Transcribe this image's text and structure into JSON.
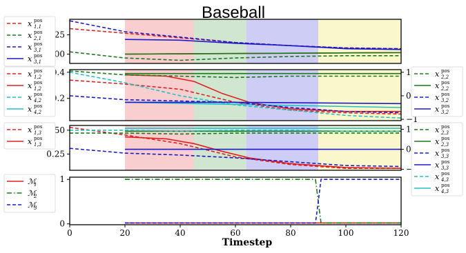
{
  "chart_data": {
    "title": "Baseball",
    "xlabel": "Timestep",
    "xlim": [
      0,
      120
    ],
    "xticks": [
      "0",
      "20",
      "40",
      "60",
      "80",
      "100",
      "120"
    ],
    "bands": [
      {
        "from": 20,
        "to": 45,
        "color": "#f7c6c6"
      },
      {
        "from": 45,
        "to": 64,
        "color": "#c8e2c8"
      },
      {
        "from": 64,
        "to": 90,
        "color": "#c4c4f4"
      },
      {
        "from": 90,
        "to": 120,
        "color": "#f9f6c4"
      }
    ],
    "panels": [
      {
        "type": "line",
        "ylim": [
          -0.12,
          0.45
        ],
        "yticks": [
          {
            "v": 0.25,
            "label": "0.25"
          },
          {
            "v": 0.0,
            "label": "0.00"
          }
        ],
        "legend_left": [
          {
            "label": "x",
            "sub": "1,1",
            "sup": "pos",
            "color": "#e02020",
            "dash": true
          },
          {
            "label": "x",
            "sub": "2,1",
            "sup": "pos",
            "color": "#1a7a1a",
            "dash": true
          },
          {
            "label": "x",
            "sub": "3,1",
            "sup": "pos",
            "color": "#1a1acc",
            "dash": true
          },
          {
            "label": "x",
            "sub": "3,1",
            "sup": "pos",
            "color": "#1a1acc",
            "dash": false
          }
        ],
        "series": [
          {
            "color": "#e02020",
            "dash": true,
            "x": [
              0,
              20,
              40,
              60,
              80,
              100,
              120
            ],
            "y": [
              0.33,
              0.27,
              0.21,
              0.15,
              0.11,
              0.08,
              0.07
            ]
          },
          {
            "color": "#1a7a1a",
            "dash": true,
            "x": [
              0,
              20,
              40,
              60,
              80,
              100,
              120
            ],
            "y": [
              0.03,
              -0.05,
              -0.08,
              -0.05,
              -0.03,
              -0.02,
              -0.02
            ]
          },
          {
            "color": "#1a1acc",
            "dash": true,
            "x": [
              0,
              20,
              40,
              60,
              80,
              100,
              120
            ],
            "y": [
              0.43,
              0.29,
              0.22,
              0.15,
              0.11,
              0.08,
              0.07
            ]
          },
          {
            "color": "#1a1acc",
            "dash": false,
            "x": [
              20,
              40,
              60,
              80,
              100,
              120
            ],
            "y": [
              0.19,
              0.18,
              0.14,
              0.11,
              0.07,
              0.06
            ]
          },
          {
            "color": "#e02020",
            "dash": false,
            "x": [
              20,
              120
            ],
            "y": [
              0.0,
              0.02
            ]
          },
          {
            "color": "#1a7a1a",
            "dash": false,
            "x": [
              20,
              120
            ],
            "y": [
              0.0,
              0.02
            ]
          }
        ]
      },
      {
        "type": "line",
        "ylim": [
          0.03,
          0.42
        ],
        "yticks": [
          {
            "v": 0.4,
            "label": "0.4"
          },
          {
            "v": 0.2,
            "label": "0.2"
          }
        ],
        "y2ticks": [
          {
            "v": 0.4,
            "label": "1"
          },
          {
            "v": 0.22,
            "label": "0"
          },
          {
            "v": 0.04,
            "label": "−1"
          }
        ],
        "legend_left": [
          {
            "label": "x",
            "sub": "1,2",
            "sup": "pos",
            "color": "#e02020",
            "dash": true
          },
          {
            "label": "x",
            "sub": "1,2",
            "sup": "pos",
            "color": "#e02020",
            "dash": false
          },
          {
            "label": "x",
            "sub": "4,2",
            "sup": "pos",
            "color": "#20c0c8",
            "dash": true
          },
          {
            "label": "x",
            "sub": "4,2",
            "sup": "pos",
            "color": "#20c0c8",
            "dash": false
          }
        ],
        "legend_right": [
          {
            "label": "x",
            "sub": "2,2",
            "sup": "pos",
            "color": "#1a7a1a",
            "dash": true
          },
          {
            "label": "x",
            "sub": "2,2",
            "sup": "pos",
            "color": "#1a7a1a",
            "dash": false
          },
          {
            "label": "x",
            "sub": "3,2",
            "sup": "pos",
            "color": "#1a1acc",
            "dash": true
          },
          {
            "label": "x",
            "sub": "3,2",
            "sup": "pos",
            "color": "#1a1acc",
            "dash": false
          }
        ],
        "series": [
          {
            "color": "#e02020",
            "dash": true,
            "x": [
              0,
              20,
              40,
              60,
              80,
              100,
              120
            ],
            "y": [
              0.34,
              0.31,
              0.27,
              0.17,
              0.11,
              0.09,
              0.08
            ]
          },
          {
            "color": "#e02020",
            "dash": false,
            "x": [
              20,
              35,
              45,
              55,
              65,
              80,
              100,
              120
            ],
            "y": [
              0.38,
              0.37,
              0.33,
              0.24,
              0.17,
              0.12,
              0.1,
              0.1
            ]
          },
          {
            "color": "#20c0c8",
            "dash": true,
            "x": [
              0,
              20,
              40,
              60,
              80,
              100,
              120
            ],
            "y": [
              0.4,
              0.32,
              0.22,
              0.15,
              0.11,
              0.07,
              0.05
            ]
          },
          {
            "color": "#20c0c8",
            "dash": false,
            "x": [
              20,
              120
            ],
            "y": [
              0.17,
              0.13
            ]
          },
          {
            "color": "#1a7a1a",
            "dash": true,
            "x": [
              0,
              20,
              40,
              60,
              80,
              100,
              120
            ],
            "y": [
              0.41,
              0.38,
              0.37,
              0.36,
              0.37,
              0.37,
              0.37
            ]
          },
          {
            "color": "#1a7a1a",
            "dash": false,
            "x": [
              20,
              120
            ],
            "y": [
              0.39,
              0.39
            ]
          },
          {
            "color": "#1a1acc",
            "dash": true,
            "x": [
              0,
              20,
              40,
              60,
              80,
              100,
              120
            ],
            "y": [
              0.22,
              0.19,
              0.18,
              0.17,
              0.13,
              0.1,
              0.09
            ]
          },
          {
            "color": "#1a1acc",
            "dash": false,
            "x": [
              20,
              60,
              120
            ],
            "y": [
              0.17,
              0.17,
              0.16
            ]
          }
        ]
      },
      {
        "type": "line",
        "ylim": [
          0.08,
          0.55
        ],
        "yticks": [
          {
            "v": 0.5,
            "label": "0.50"
          },
          {
            "v": 0.25,
            "label": "0.25"
          }
        ],
        "y2ticks": [
          {
            "v": 0.51,
            "label": "1"
          },
          {
            "v": 0.3,
            "label": "0"
          },
          {
            "v": 0.09,
            "label": "−1"
          }
        ],
        "legend_left": [
          {
            "label": "x",
            "sub": "1,3",
            "sup": "pos",
            "color": "#e02020",
            "dash": true
          },
          {
            "label": "x",
            "sub": "1,3",
            "sup": "pos",
            "color": "#e02020",
            "dash": false
          }
        ],
        "legend_right": [
          {
            "label": "x",
            "sub": "2,3",
            "sup": "pos",
            "color": "#1a7a1a",
            "dash": true
          },
          {
            "label": "x",
            "sub": "2,3",
            "sup": "pos",
            "color": "#1a7a1a",
            "dash": false
          },
          {
            "label": "x",
            "sub": "3,3",
            "sup": "pos",
            "color": "#1a1acc",
            "dash": true
          },
          {
            "label": "x",
            "sub": "3,3",
            "sup": "pos",
            "color": "#1a1acc",
            "dash": false
          },
          {
            "label": "x",
            "sub": "4,3",
            "sup": "pos",
            "color": "#20c0c8",
            "dash": true
          },
          {
            "label": "x",
            "sub": "4,3",
            "sup": "pos",
            "color": "#20c0c8",
            "dash": false
          }
        ],
        "series": [
          {
            "color": "#e02020",
            "dash": true,
            "x": [
              0,
              20,
              40,
              60,
              80,
              100,
              120
            ],
            "y": [
              0.53,
              0.45,
              0.36,
              0.22,
              0.14,
              0.1,
              0.1
            ]
          },
          {
            "color": "#e02020",
            "dash": false,
            "x": [
              20,
              35,
              45,
              55,
              65,
              80,
              100,
              120
            ],
            "y": [
              0.43,
              0.41,
              0.36,
              0.28,
              0.21,
              0.15,
              0.11,
              0.1
            ]
          },
          {
            "color": "#1a7a1a",
            "dash": true,
            "x": [
              0,
              20,
              40,
              60,
              80,
              100,
              120
            ],
            "y": [
              0.47,
              0.47,
              0.46,
              0.47,
              0.47,
              0.47,
              0.47
            ]
          },
          {
            "color": "#1a7a1a",
            "dash": false,
            "x": [
              20,
              120
            ],
            "y": [
              0.49,
              0.49
            ]
          },
          {
            "color": "#1a1acc",
            "dash": true,
            "x": [
              0,
              20,
              40,
              60,
              80,
              100,
              120
            ],
            "y": [
              0.31,
              0.26,
              0.24,
              0.21,
              0.17,
              0.13,
              0.12
            ]
          },
          {
            "color": "#1a1acc",
            "dash": false,
            "x": [
              20,
              120
            ],
            "y": [
              0.3,
              0.3
            ]
          },
          {
            "color": "#20c0c8",
            "dash": true,
            "x": [
              0,
              20,
              40,
              60,
              80,
              100,
              120
            ],
            "y": [
              0.5,
              0.5,
              0.49,
              0.5,
              0.5,
              0.49,
              0.49
            ]
          },
          {
            "color": "#20c0c8",
            "dash": false,
            "x": [
              20,
              120
            ],
            "y": [
              0.52,
              0.52
            ]
          }
        ]
      },
      {
        "type": "line",
        "ylim": [
          -0.02,
          1.05
        ],
        "yticks": [
          {
            "v": 1,
            "label": "1"
          },
          {
            "v": 0,
            "label": "0"
          }
        ],
        "legend_left": [
          {
            "label": "ℳ",
            "sub": "1",
            "sup": "",
            "color": "#e02020",
            "dash": false,
            "dashdot": false
          },
          {
            "label": "ℳ",
            "sub": "2",
            "sup": "",
            "color": "#1a7a1a",
            "dash": false,
            "dashdot": true
          },
          {
            "label": "ℳ",
            "sub": "3",
            "sup": "",
            "color": "#1a1acc",
            "dash": true,
            "dashdot": false
          }
        ],
        "series": [
          {
            "color": "#e02020",
            "dash": false,
            "x": [
              20,
              120
            ],
            "y": [
              0.02,
              0.02
            ]
          },
          {
            "color": "#1a7a1a",
            "dashdot": true,
            "x": [
              20,
              89,
              90,
              91,
              120
            ],
            "y": [
              1.0,
              1.0,
              0.5,
              0.02,
              0.02
            ]
          },
          {
            "color": "#1a1acc",
            "dash": true,
            "x": [
              20,
              89,
              90,
              91,
              120
            ],
            "y": [
              0.02,
              0.02,
              0.5,
              1.0,
              1.0
            ]
          }
        ]
      }
    ]
  }
}
